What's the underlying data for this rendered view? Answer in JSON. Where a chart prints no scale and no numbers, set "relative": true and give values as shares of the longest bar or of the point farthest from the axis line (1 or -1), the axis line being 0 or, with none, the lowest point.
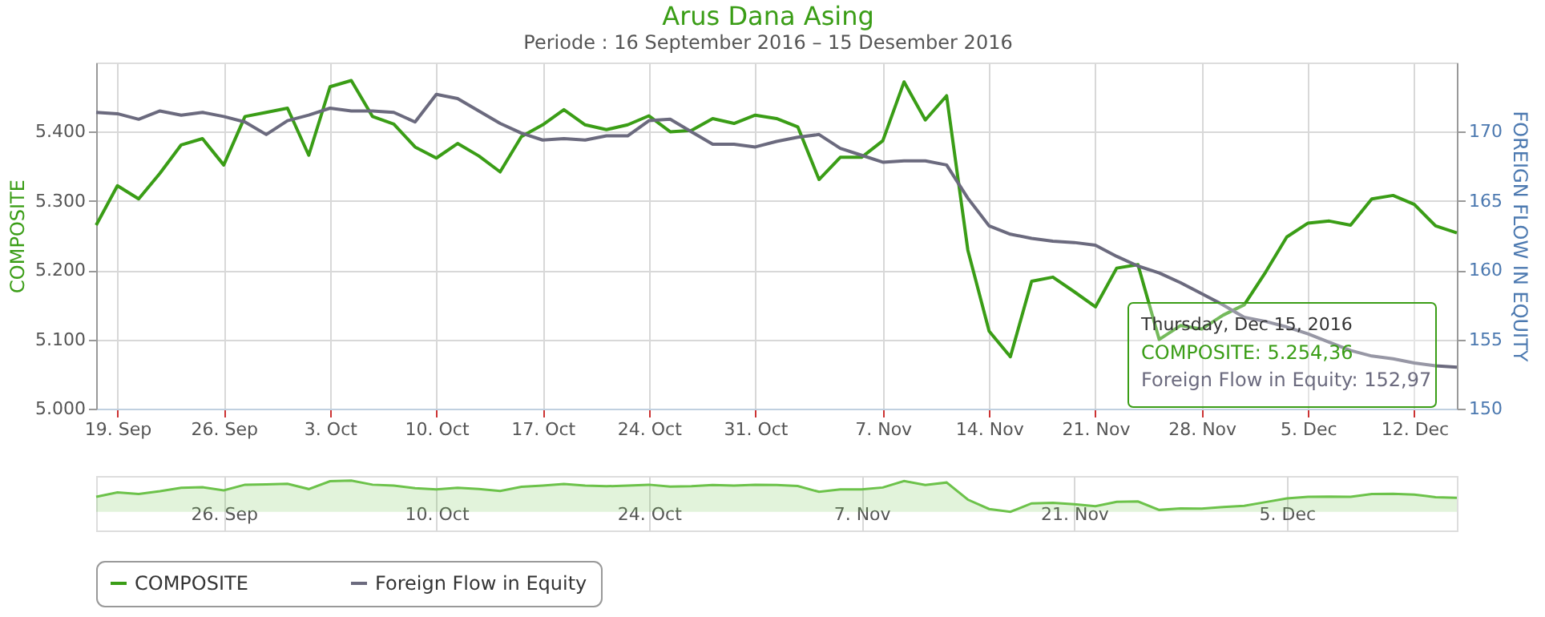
{
  "chart_data": [
    {
      "type": "line",
      "title": "Arus Dana Asing",
      "subtitle": "Periode : 16 September 2016 – 15 Desember 2016",
      "ylabel": "COMPOSITE",
      "y2label": "FOREIGN FLOW IN EQUITY",
      "categories": [
        null,
        "19. Sep",
        null,
        null,
        null,
        null,
        "26. Sep",
        null,
        null,
        null,
        null,
        "3. Oct",
        null,
        null,
        null,
        null,
        "10. Oct",
        null,
        null,
        null,
        null,
        "17. Oct",
        null,
        null,
        null,
        null,
        "24. Oct",
        null,
        null,
        null,
        null,
        "31. Oct",
        null,
        null,
        null,
        null,
        null,
        "7. Nov",
        null,
        null,
        null,
        null,
        "14. Nov",
        null,
        null,
        null,
        null,
        "21. Nov",
        null,
        null,
        null,
        null,
        "28. Nov",
        null,
        null,
        null,
        null,
        "5. Dec",
        null,
        null,
        null,
        null,
        "12. Dec",
        null,
        null
      ],
      "series": [
        {
          "name": "COMPOSITE",
          "color": "#3a9d16",
          "axis": "y",
          "values": [
            5265,
            5322,
            5303,
            5340,
            5381,
            5390,
            5352,
            5422,
            5428,
            5434,
            5366,
            5465,
            5474,
            5422,
            5411,
            5378,
            5362,
            5383,
            5365,
            5342,
            5393,
            5410,
            5432,
            5410,
            5403,
            5410,
            5423,
            5400,
            5402,
            5419,
            5412,
            5424,
            5419,
            5407,
            5331,
            5363,
            5363,
            5387,
            5472,
            5417,
            5452,
            5229,
            5112,
            5075,
            5184,
            5190,
            5169,
            5147,
            5203,
            5208,
            5100,
            5120,
            5115,
            5135,
            5150,
            5197,
            5248,
            5268,
            5271,
            5265,
            5303,
            5308,
            5295,
            5264,
            5254
          ]
        },
        {
          "name": "Foreign Flow in Equity",
          "color": "#6b6a7e",
          "axis": "y2",
          "values": [
            171.4,
            171.3,
            170.9,
            171.5,
            171.2,
            171.4,
            171.1,
            170.7,
            169.8,
            170.8,
            171.2,
            171.7,
            171.5,
            171.5,
            171.4,
            170.7,
            172.7,
            172.4,
            171.5,
            170.6,
            169.9,
            169.4,
            169.5,
            169.4,
            169.7,
            169.7,
            170.8,
            170.9,
            170.0,
            169.1,
            169.1,
            168.9,
            169.3,
            169.6,
            169.8,
            168.8,
            168.3,
            167.8,
            167.9,
            167.9,
            167.6,
            165.2,
            163.2,
            162.6,
            162.3,
            162.1,
            162.0,
            161.8,
            161.0,
            160.3,
            159.8,
            159.1,
            158.3,
            157.5,
            156.6,
            156.3,
            155.9,
            155.4,
            154.8,
            154.2,
            153.8,
            153.6,
            153.3,
            153.1,
            153.0
          ]
        }
      ],
      "ylim": [
        5000,
        5500
      ],
      "yticks": [
        {
          "value": 5000,
          "label": "5.000"
        },
        {
          "value": 5100,
          "label": "5.100"
        },
        {
          "value": 5200,
          "label": "5.200"
        },
        {
          "value": 5300,
          "label": "5.300"
        },
        {
          "value": 5400,
          "label": "5.400"
        }
      ],
      "y2lim": [
        150,
        175
      ],
      "y2ticks": [
        150,
        155,
        160,
        165,
        170
      ],
      "grid": true,
      "legend": "bottom",
      "marker": "none",
      "line_style": "solid",
      "annotations": [
        "Thursday, Dec 15, 2016",
        "COMPOSITE: 5.254,36",
        "Foreign Flow in Equity: 152,97"
      ]
    },
    {
      "type": "area",
      "relative": true,
      "tick_labels": "x",
      "grid": "x",
      "categories": [
        null,
        null,
        null,
        null,
        null,
        null,
        "26. Sep",
        null,
        null,
        null,
        null,
        null,
        null,
        null,
        null,
        null,
        "10. Oct",
        null,
        null,
        null,
        null,
        null,
        null,
        null,
        null,
        null,
        "24. Oct",
        null,
        null,
        null,
        null,
        null,
        null,
        null,
        null,
        null,
        "7. Nov",
        null,
        null,
        null,
        null,
        null,
        null,
        null,
        null,
        null,
        "21. Nov",
        null,
        null,
        null,
        null,
        null,
        null,
        null,
        null,
        null,
        "5. Dec",
        null,
        null,
        null,
        null,
        null,
        null,
        null,
        null
      ],
      "series": [
        {
          "color": "#6cc24a",
          "values": [
            0.48,
            0.62,
            0.57,
            0.66,
            0.77,
            0.79,
            0.69,
            0.87,
            0.88,
            0.9,
            0.73,
            0.98,
            1.0,
            0.87,
            0.84,
            0.76,
            0.72,
            0.77,
            0.73,
            0.67,
            0.8,
            0.84,
            0.89,
            0.84,
            0.82,
            0.84,
            0.87,
            0.81,
            0.82,
            0.86,
            0.84,
            0.87,
            0.86,
            0.83,
            0.64,
            0.72,
            0.72,
            0.78,
            0.99,
            0.86,
            0.94,
            0.39,
            0.09,
            0.0,
            0.27,
            0.29,
            0.24,
            0.18,
            0.32,
            0.33,
            0.06,
            0.11,
            0.1,
            0.15,
            0.19,
            0.31,
            0.43,
            0.48,
            0.49,
            0.48,
            0.57,
            0.58,
            0.55,
            0.47,
            0.45
          ]
        }
      ]
    }
  ]
}
